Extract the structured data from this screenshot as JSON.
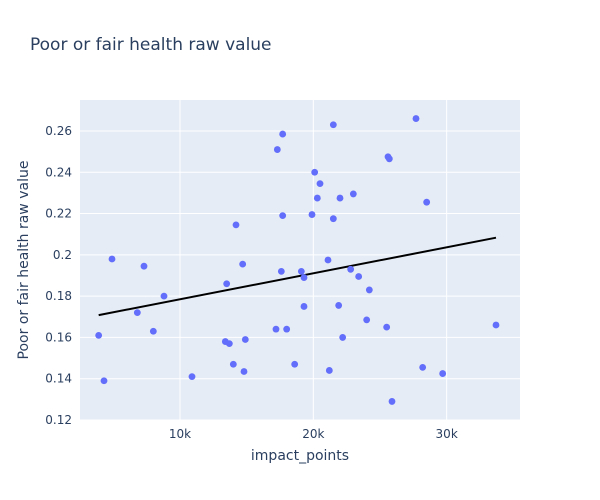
{
  "chart_data": {
    "type": "scatter",
    "title": "Poor or fair health raw value",
    "xlabel": "impact_points",
    "ylabel": "Poor or fair health raw value",
    "xlim": [
      2500,
      35500
    ],
    "ylim": [
      0.12,
      0.275
    ],
    "x_ticks": [
      10000,
      20000,
      30000
    ],
    "x_tick_labels": [
      "10k",
      "20k",
      "30k"
    ],
    "y_ticks": [
      0.12,
      0.14,
      0.16,
      0.18,
      0.2,
      0.22,
      0.24,
      0.26
    ],
    "y_tick_labels": [
      "0.12",
      "0.14",
      "0.16",
      "0.18",
      "0.2",
      "0.22",
      "0.24",
      "0.26"
    ],
    "grid": true,
    "colors": {
      "marker": "#636efa",
      "trend": "#000000",
      "plot_bg": "#e5ecf6"
    },
    "points": [
      [
        3900,
        0.161
      ],
      [
        4300,
        0.139
      ],
      [
        4900,
        0.198
      ],
      [
        6800,
        0.172
      ],
      [
        7300,
        0.1945
      ],
      [
        8000,
        0.163
      ],
      [
        8800,
        0.18
      ],
      [
        10900,
        0.141
      ],
      [
        13400,
        0.158
      ],
      [
        13500,
        0.186
      ],
      [
        13700,
        0.157
      ],
      [
        14000,
        0.147
      ],
      [
        14200,
        0.2145
      ],
      [
        14700,
        0.1955
      ],
      [
        14800,
        0.1435
      ],
      [
        14900,
        0.159
      ],
      [
        17200,
        0.164
      ],
      [
        17300,
        0.251
      ],
      [
        17600,
        0.192
      ],
      [
        17700,
        0.219
      ],
      [
        17700,
        0.2585
      ],
      [
        18000,
        0.164
      ],
      [
        18600,
        0.147
      ],
      [
        19100,
        0.192
      ],
      [
        19300,
        0.189
      ],
      [
        19300,
        0.175
      ],
      [
        19900,
        0.2195
      ],
      [
        20100,
        0.24
      ],
      [
        20300,
        0.2275
      ],
      [
        20500,
        0.2345
      ],
      [
        21100,
        0.1975
      ],
      [
        21200,
        0.144
      ],
      [
        21500,
        0.2175
      ],
      [
        21500,
        0.263
      ],
      [
        21900,
        0.1755
      ],
      [
        22000,
        0.2275
      ],
      [
        22200,
        0.16
      ],
      [
        22800,
        0.193
      ],
      [
        23000,
        0.2295
      ],
      [
        23400,
        0.1895
      ],
      [
        24000,
        0.1685
      ],
      [
        24200,
        0.183
      ],
      [
        25500,
        0.165
      ],
      [
        25600,
        0.2475
      ],
      [
        25700,
        0.2465
      ],
      [
        25900,
        0.129
      ],
      [
        27700,
        0.266
      ],
      [
        28200,
        0.1455
      ],
      [
        28500,
        0.2255
      ],
      [
        29700,
        0.1425
      ],
      [
        33700,
        0.166
      ]
    ],
    "trendline": {
      "x": [
        3900,
        33700
      ],
      "y": [
        0.1708,
        0.2083
      ]
    }
  }
}
